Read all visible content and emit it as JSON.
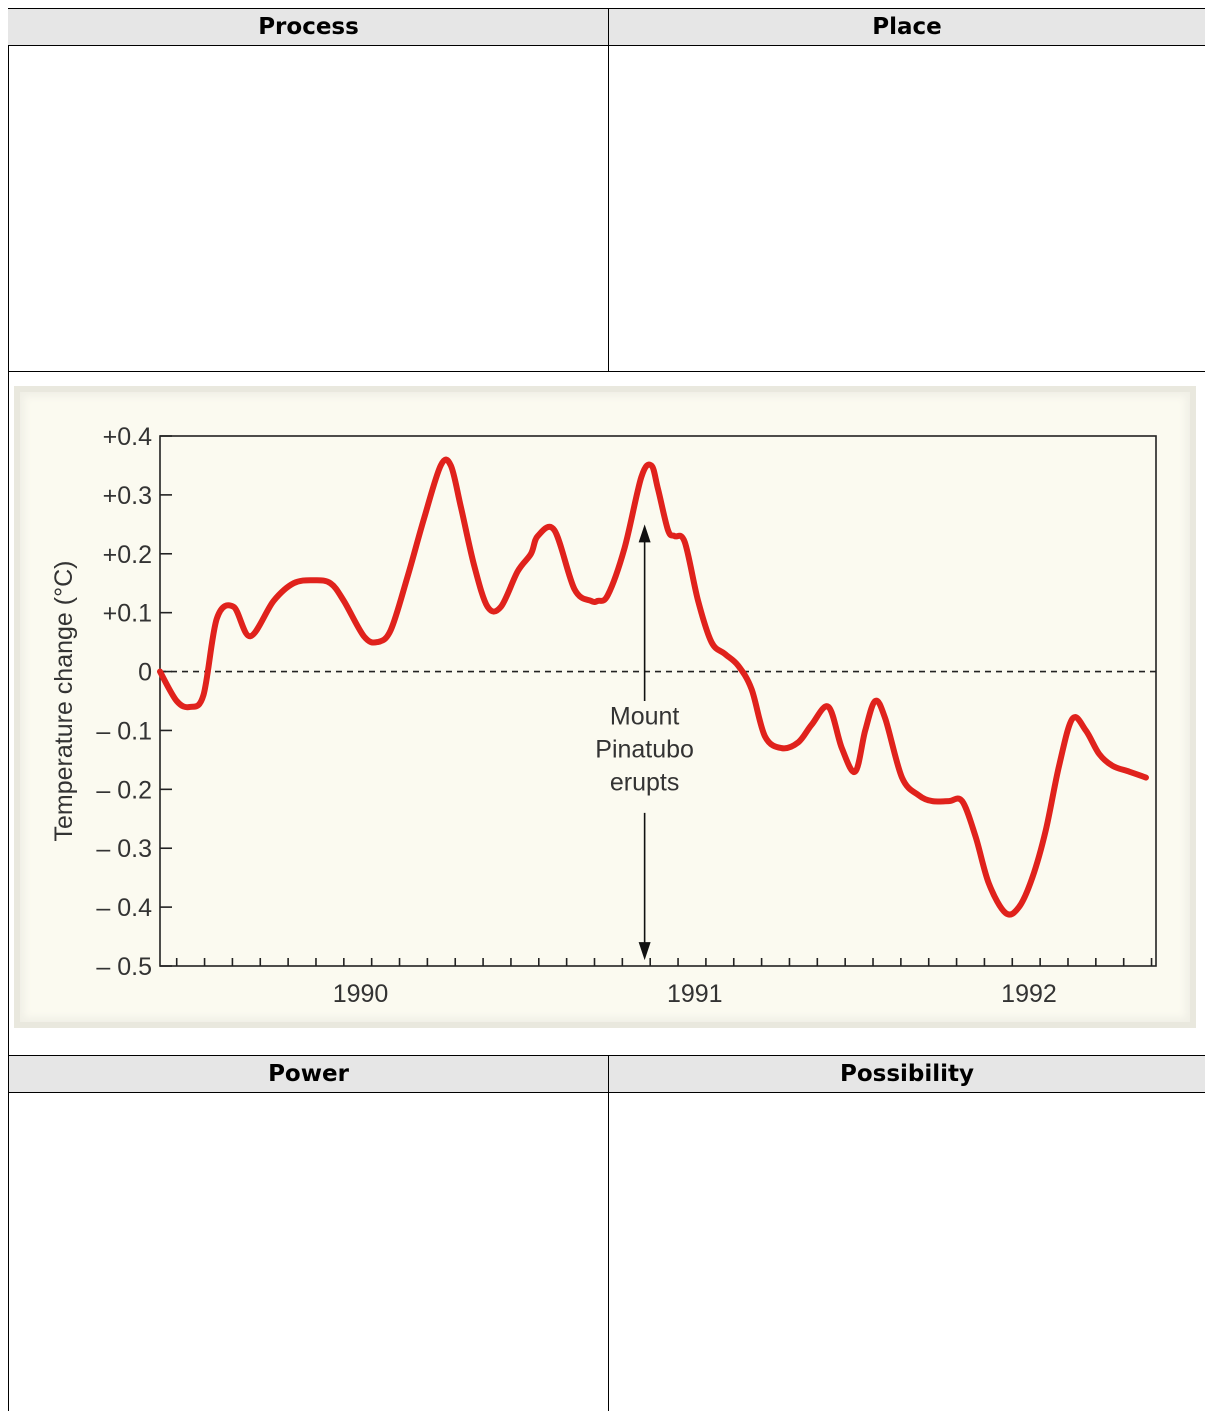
{
  "table": {
    "top_headers": [
      "Process",
      "Place"
    ],
    "bottom_headers": [
      "Power",
      "Possibility"
    ]
  },
  "chart_data": {
    "type": "line",
    "title": "",
    "xlabel": "",
    "ylabel": "Temperature change (°C)",
    "ylim": [
      -0.5,
      0.4
    ],
    "y_ticks": [
      "+0.4",
      "+0.3",
      "+0.2",
      "+0.1",
      "0",
      "– 0.1",
      "– 0.2",
      "– 0.3",
      "– 0.4",
      "– 0.5"
    ],
    "y_tick_values": [
      0.4,
      0.3,
      0.2,
      0.1,
      0,
      -0.1,
      -0.2,
      -0.3,
      -0.4,
      -0.5
    ],
    "x_tick_labels": [
      "1990",
      "1991",
      "1992"
    ],
    "x_tick_values": [
      1990,
      1991,
      1992
    ],
    "xlim": [
      1989.4,
      1992.38
    ],
    "line_color": "#e0221c",
    "zero_line": "dashed",
    "annotation": {
      "lines": [
        "Mount",
        "Pinatubo",
        "erupts"
      ],
      "x": 1990.85,
      "arrow_top": 0.25,
      "arrow_bottom": -0.49
    },
    "series": [
      {
        "x": [
          1989.4,
          1989.45,
          1989.49,
          1989.53,
          1989.57,
          1989.62,
          1989.67,
          1989.74,
          1989.8,
          1989.86,
          1989.91,
          1989.95,
          1990.01,
          1990.05,
          1990.09,
          1990.14,
          1990.19,
          1990.24,
          1990.27,
          1990.3,
          1990.34,
          1990.38,
          1990.42,
          1990.47,
          1990.51,
          1990.53,
          1990.58,
          1990.64,
          1990.69,
          1990.71,
          1990.74,
          1990.79,
          1990.84,
          1990.87,
          1990.89,
          1990.92,
          1990.94,
          1990.97,
          1991.01,
          1991.05,
          1991.09,
          1991.13,
          1991.17,
          1991.21,
          1991.26,
          1991.31,
          1991.35,
          1991.4,
          1991.44,
          1991.48,
          1991.51,
          1991.54,
          1991.57,
          1991.62,
          1991.67,
          1991.71,
          1991.76,
          1991.8,
          1991.84,
          1991.88,
          1991.93,
          1991.97,
          1992.01,
          1992.05,
          1992.09,
          1992.13,
          1992.17,
          1992.21,
          1992.25,
          1992.3,
          1992.35
        ],
        "y": [
          0.0,
          -0.05,
          -0.06,
          -0.04,
          0.09,
          0.11,
          0.06,
          0.12,
          0.15,
          0.155,
          0.15,
          0.12,
          0.06,
          0.05,
          0.07,
          0.16,
          0.26,
          0.35,
          0.35,
          0.28,
          0.18,
          0.11,
          0.11,
          0.17,
          0.2,
          0.23,
          0.24,
          0.14,
          0.12,
          0.12,
          0.13,
          0.21,
          0.33,
          0.35,
          0.31,
          0.24,
          0.23,
          0.22,
          0.12,
          0.05,
          0.03,
          0.01,
          -0.03,
          -0.11,
          -0.13,
          -0.12,
          -0.09,
          -0.06,
          -0.13,
          -0.17,
          -0.1,
          -0.05,
          -0.08,
          -0.18,
          -0.21,
          -0.22,
          -0.22,
          -0.22,
          -0.28,
          -0.36,
          -0.41,
          -0.4,
          -0.35,
          -0.27,
          -0.16,
          -0.08,
          -0.1,
          -0.14,
          -0.16,
          -0.17,
          -0.18
        ]
      }
    ]
  }
}
